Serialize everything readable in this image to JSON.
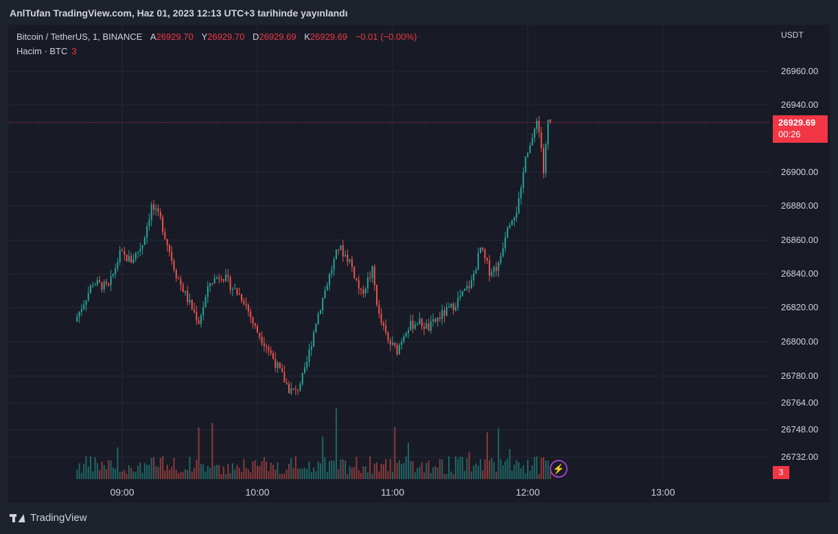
{
  "header": {
    "publisher_text": "AnlTufan TradingView.com, Haz 01, 2023 12:13 UTC+3 tarihinde yayınlandı"
  },
  "legend": {
    "symbol": "Bitcoin / TetherUS, 1, BINANCE",
    "open_label": "A",
    "open_value": "26929.70",
    "high_label": "Y",
    "high_value": "26929.70",
    "low_label": "D",
    "low_value": "26929.69",
    "close_label": "K",
    "close_value": "26929.69",
    "change": "−0.01 (−0.00%)",
    "volume_label": "Hacim · BTC",
    "volume_value": "3"
  },
  "price_axis": {
    "currency": "USDT",
    "current_price": "26929.69",
    "countdown": "00:26",
    "volume_badge": "3"
  },
  "footer": {
    "brand": "TradingView"
  },
  "colors": {
    "up": "#26a69a",
    "down": "#ef5350",
    "background": "#181b25",
    "badge": "#f23645"
  },
  "icons": {
    "bolt": "lightning-icon",
    "logo": "tradingview-logo-icon"
  },
  "chart_data": {
    "type": "candlestick",
    "interval": "1 minute",
    "x_ticks": [
      "09:00",
      "10:00",
      "11:00",
      "12:00",
      "13:00"
    ],
    "y_ticks": [
      "26960.00",
      "26940.00",
      "26900.00",
      "26880.00",
      "26860.00",
      "26840.00",
      "26820.00",
      "26800.00",
      "26780.00",
      "26764.00",
      "26748.00",
      "26732.00"
    ],
    "y_tick_values": [
      26960,
      26940,
      26900,
      26880,
      26860,
      26840,
      26820,
      26800,
      26780,
      26764,
      26748,
      26732
    ],
    "current_price": 26929.69,
    "start_time": "08:40",
    "close_path": [
      [
        "08:40",
        26812
      ],
      [
        "08:48",
        26835
      ],
      [
        "08:55",
        26832
      ],
      [
        "09:00",
        26852
      ],
      [
        "09:05",
        26848
      ],
      [
        "09:10",
        26858
      ],
      [
        "09:14",
        26880
      ],
      [
        "09:18",
        26872
      ],
      [
        "09:25",
        26840
      ],
      [
        "09:30",
        26825
      ],
      [
        "09:35",
        26812
      ],
      [
        "09:40",
        26835
      ],
      [
        "09:45",
        26840
      ],
      [
        "09:50",
        26832
      ],
      [
        "09:55",
        26825
      ],
      [
        "10:00",
        26808
      ],
      [
        "10:05",
        26798
      ],
      [
        "10:10",
        26785
      ],
      [
        "10:15",
        26772
      ],
      [
        "10:18",
        26770
      ],
      [
        "10:22",
        26782
      ],
      [
        "10:27",
        26812
      ],
      [
        "10:32",
        26835
      ],
      [
        "10:37",
        26856
      ],
      [
        "10:42",
        26848
      ],
      [
        "10:47",
        26828
      ],
      [
        "10:52",
        26842
      ],
      [
        "10:55",
        26815
      ],
      [
        "10:59",
        26800
      ],
      [
        "11:03",
        26795
      ],
      [
        "11:07",
        26808
      ],
      [
        "11:12",
        26812
      ],
      [
        "11:17",
        26808
      ],
      [
        "11:22",
        26815
      ],
      [
        "11:27",
        26820
      ],
      [
        "11:32",
        26828
      ],
      [
        "11:36",
        26835
      ],
      [
        "11:40",
        26855
      ],
      [
        "11:44",
        26842
      ],
      [
        "11:48",
        26845
      ],
      [
        "11:52",
        26870
      ],
      [
        "11:56",
        26878
      ],
      [
        "11:58",
        26888
      ],
      [
        "12:00",
        26912
      ],
      [
        "12:03",
        26918
      ],
      [
        "12:05",
        26933
      ],
      [
        "12:07",
        26915
      ],
      [
        "12:08",
        26900
      ],
      [
        "12:10",
        26930
      ]
    ],
    "volume_max": 185
  }
}
